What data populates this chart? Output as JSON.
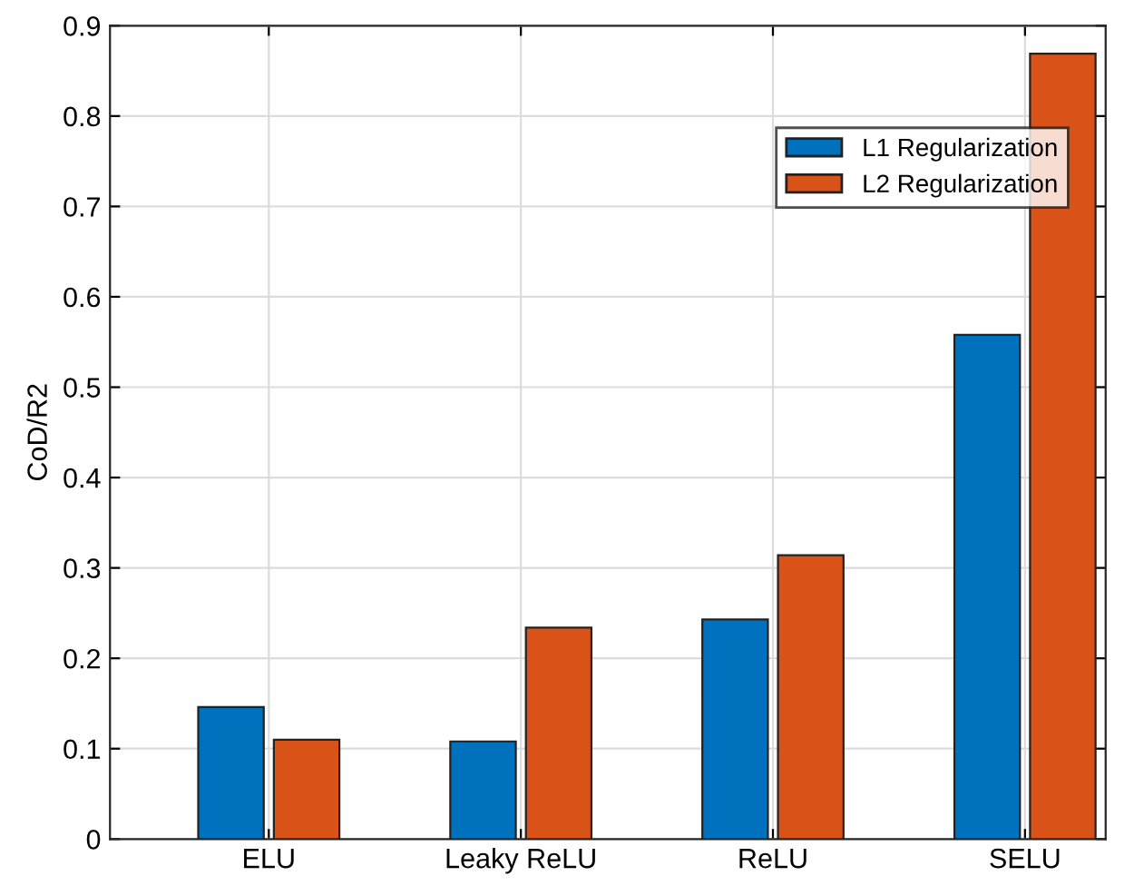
{
  "chart_data": {
    "type": "bar",
    "ylabel": "CoD/R2",
    "categories": [
      "ELU",
      "Leaky ReLU",
      "ReLU",
      "SELU"
    ],
    "series": [
      {
        "name": "L1 Regularization",
        "color": "#0072bd",
        "values": [
          0.146,
          0.108,
          0.243,
          0.558
        ]
      },
      {
        "name": "L2 Regularization",
        "color": "#d95319",
        "values": [
          0.11,
          0.234,
          0.314,
          0.869
        ]
      }
    ],
    "ylim": [
      0,
      0.9
    ],
    "yticks": [
      0,
      0.1,
      0.2,
      0.3,
      0.4,
      0.5,
      0.6,
      0.7,
      0.8,
      0.9
    ],
    "grid": true,
    "legend": "top right"
  }
}
